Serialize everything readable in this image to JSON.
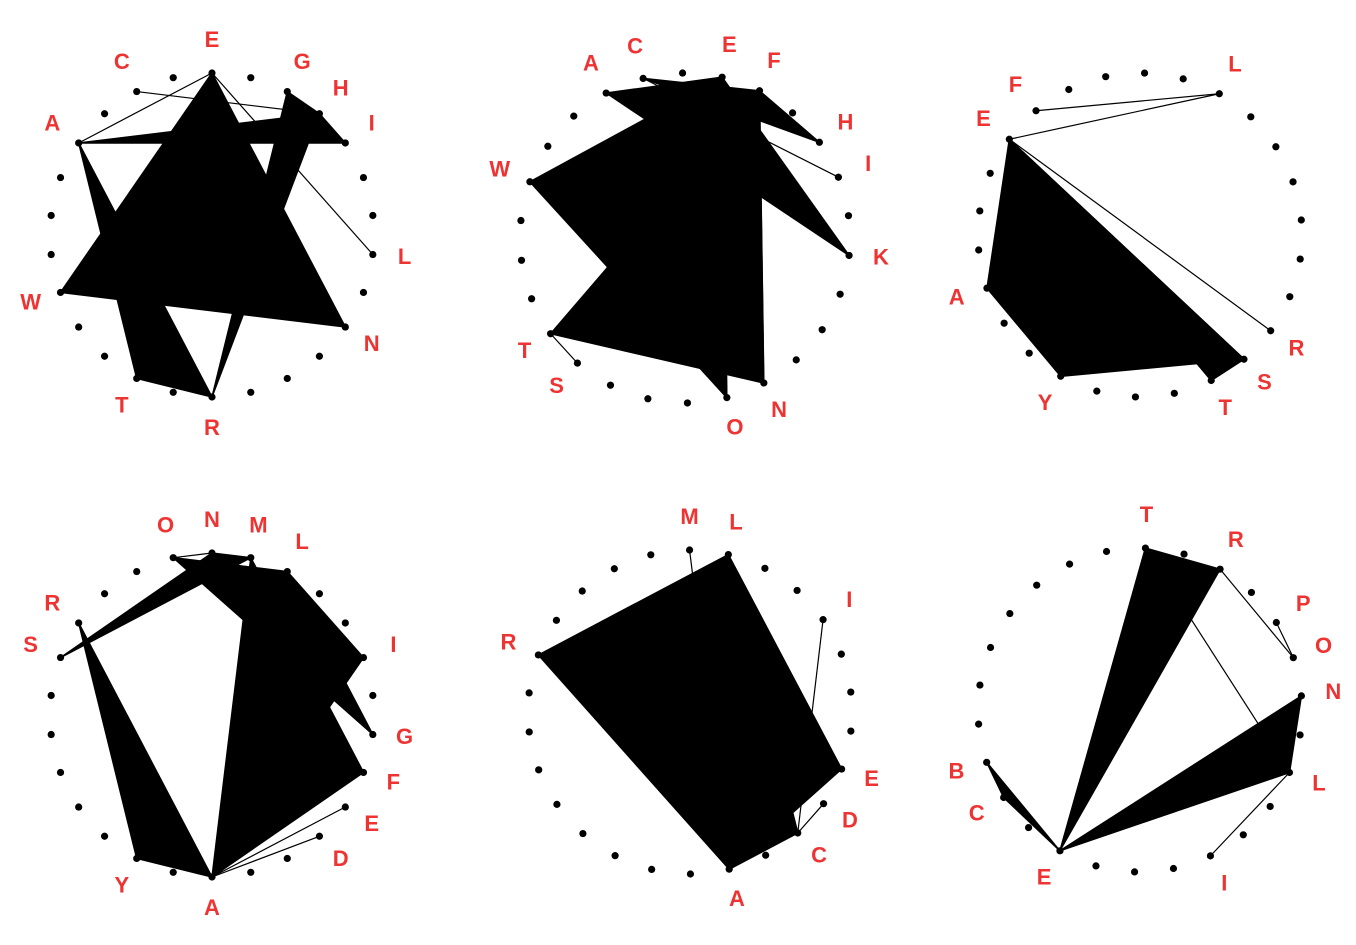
{
  "colors": {
    "label": "#ee3333",
    "ink": "#000000",
    "background": "#ffffff"
  },
  "circles": [
    {
      "id": "circle-1",
      "points": 26,
      "labels": [
        {
          "idx": 0,
          "text": "E"
        },
        {
          "idx": 2,
          "text": "G"
        },
        {
          "idx": 3,
          "text": "H"
        },
        {
          "idx": 4,
          "text": "I"
        },
        {
          "idx": 7,
          "text": "L"
        },
        {
          "idx": 9,
          "text": "N"
        },
        {
          "idx": 13,
          "text": "R"
        },
        {
          "idx": 15,
          "text": "T"
        },
        {
          "idx": 18,
          "text": "W"
        },
        {
          "idx": 22,
          "text": "A"
        },
        {
          "idx": 24,
          "text": "C"
        }
      ],
      "fills": [
        [
          22,
          3,
          4
        ],
        [
          22,
          13,
          15
        ],
        [
          18,
          9,
          0
        ],
        [
          2,
          3,
          13
        ]
      ],
      "lines": [
        [
          24,
          3
        ],
        [
          0,
          7
        ],
        [
          22,
          0
        ]
      ]
    },
    {
      "id": "circle-2",
      "points": 26,
      "labels": [
        {
          "idx": 0,
          "text": "E"
        },
        {
          "idx": 1,
          "text": "F"
        },
        {
          "idx": 3,
          "text": "H"
        },
        {
          "idx": 4,
          "text": "I"
        },
        {
          "idx": 6,
          "text": "K"
        },
        {
          "idx": 10,
          "text": "N"
        },
        {
          "idx": 11,
          "text": "O"
        },
        {
          "idx": 15,
          "text": "S"
        },
        {
          "idx": 16,
          "text": "T"
        },
        {
          "idx": 20,
          "text": "W"
        },
        {
          "idx": 23,
          "text": "A"
        },
        {
          "idx": 24,
          "text": "C"
        }
      ],
      "fills": [
        [
          20,
          0,
          11
        ],
        [
          16,
          1,
          10
        ],
        [
          23,
          0,
          6
        ],
        [
          24,
          3,
          1
        ]
      ],
      "lines": [
        [
          24,
          4
        ],
        [
          1,
          10
        ],
        [
          16,
          15
        ],
        [
          0,
          11
        ]
      ]
    },
    {
      "id": "circle-3",
      "points": 26,
      "labels": [
        {
          "idx": 5,
          "text": "R"
        },
        {
          "idx": 6,
          "text": "S"
        },
        {
          "idx": 7,
          "text": "T"
        },
        {
          "idx": 11,
          "text": "Y"
        },
        {
          "idx": 14,
          "text": "A"
        },
        {
          "idx": 18,
          "text": "E"
        },
        {
          "idx": 19,
          "text": "F"
        },
        {
          "idx": 24,
          "text": "L"
        }
      ],
      "fills": [
        [
          18,
          6,
          11
        ],
        [
          18,
          11,
          14
        ],
        [
          6,
          7,
          18
        ]
      ],
      "lines": [
        [
          18,
          24
        ],
        [
          18,
          5
        ],
        [
          24,
          19
        ]
      ]
    },
    {
      "id": "circle-4",
      "points": 26,
      "labels": [
        {
          "idx": 0,
          "text": "A"
        },
        {
          "idx": 3,
          "text": "D"
        },
        {
          "idx": 4,
          "text": "E"
        },
        {
          "idx": 5,
          "text": "F"
        },
        {
          "idx": 6,
          "text": "G"
        },
        {
          "idx": 8,
          "text": "I"
        },
        {
          "idx": 11,
          "text": "L"
        },
        {
          "idx": 12,
          "text": "M"
        },
        {
          "idx": 13,
          "text": "N"
        },
        {
          "idx": 14,
          "text": "O"
        },
        {
          "idx": 17,
          "text": "R"
        },
        {
          "idx": 18,
          "text": "S"
        },
        {
          "idx": 24,
          "text": "Y"
        }
      ],
      "fills": [
        [
          5,
          12,
          0
        ],
        [
          6,
          14,
          11
        ],
        [
          8,
          11,
          0
        ],
        [
          17,
          24,
          0
        ],
        [
          13,
          18,
          12
        ]
      ],
      "lines": [
        [
          4,
          0
        ],
        [
          3,
          0
        ],
        [
          13,
          14
        ],
        [
          11,
          0
        ]
      ]
    },
    {
      "id": "circle-5",
      "points": 26,
      "labels": [
        {
          "idx": 0,
          "text": "A"
        },
        {
          "idx": 2,
          "text": "C"
        },
        {
          "idx": 3,
          "text": "D"
        },
        {
          "idx": 4,
          "text": "E"
        },
        {
          "idx": 8,
          "text": "I"
        },
        {
          "idx": 11,
          "text": "L"
        },
        {
          "idx": 12,
          "text": "M"
        },
        {
          "idx": 17,
          "text": "R"
        }
      ],
      "fills": [
        [
          4,
          17,
          0
        ],
        [
          11,
          2,
          0
        ],
        [
          4,
          11,
          17
        ]
      ],
      "lines": [
        [
          11,
          4
        ],
        [
          12,
          0
        ],
        [
          8,
          2
        ],
        [
          3,
          2
        ]
      ]
    },
    {
      "id": "circle-6",
      "points": 26,
      "labels": [
        {
          "idx": 1,
          "text": "B"
        },
        {
          "idx": 2,
          "text": "C"
        },
        {
          "idx": 4,
          "text": "E"
        },
        {
          "idx": 8,
          "text": "I"
        },
        {
          "idx": 11,
          "text": "L"
        },
        {
          "idx": 13,
          "text": "N"
        },
        {
          "idx": 14,
          "text": "O"
        },
        {
          "idx": 15,
          "text": "P"
        },
        {
          "idx": 17,
          "text": "R"
        },
        {
          "idx": 19,
          "text": "T"
        }
      ],
      "fills": [
        [
          4,
          11,
          13
        ],
        [
          4,
          19,
          17
        ],
        [
          2,
          1,
          4
        ]
      ],
      "lines": [
        [
          8,
          11
        ],
        [
          11,
          19
        ],
        [
          14,
          17
        ],
        [
          15,
          14
        ]
      ]
    }
  ]
}
